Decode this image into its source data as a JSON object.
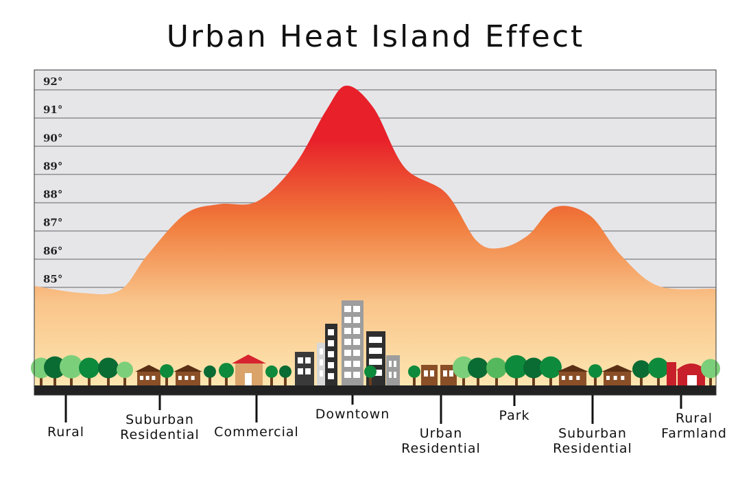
{
  "chart_data": {
    "type": "area",
    "title": "Urban Heat Island Effect",
    "xlabel": "",
    "ylabel": "",
    "ylim": [
      84.5,
      92.3
    ],
    "y_ticks": [
      "85°",
      "86°",
      "87°",
      "88°",
      "89°",
      "90°",
      "91°",
      "92°"
    ],
    "grid": true,
    "zones": [
      {
        "label": [
          "Rural"
        ],
        "value": 85.0
      },
      {
        "label": [
          "Suburban",
          "Residential"
        ],
        "value": 87.3
      },
      {
        "label": [
          "Commercial"
        ],
        "value": 88.2
      },
      {
        "label": [
          "Downtown"
        ],
        "value": 92.0
      },
      {
        "label": [
          "Urban",
          "Residential"
        ],
        "value": 88.5
      },
      {
        "label": [
          "Park"
        ],
        "value": 86.5
      },
      {
        "label": [
          "Suburban",
          "Residential"
        ],
        "value": 87.8
      },
      {
        "label": [
          "Rural",
          "Farmland"
        ],
        "value": 85.0
      }
    ],
    "curve": {
      "x": [
        50,
        120,
        175,
        215,
        270,
        320,
        375,
        430,
        475,
        505,
        545,
        590,
        650,
        695,
        730,
        770,
        810,
        860,
        905,
        960,
        1040
      ],
      "y": [
        85.0,
        84.75,
        84.85,
        86.1,
        87.55,
        87.9,
        88.0,
        89.3,
        91.2,
        92.1,
        91.3,
        89.2,
        88.3,
        86.6,
        86.35,
        86.8,
        87.8,
        87.5,
        86.1,
        85.0,
        84.9
      ]
    },
    "colors": {
      "hot": "#e8202a",
      "warm": "#f07a3a",
      "cool": "#fde6b0",
      "sky": "#e6e6e9",
      "ground": "#222222"
    }
  }
}
